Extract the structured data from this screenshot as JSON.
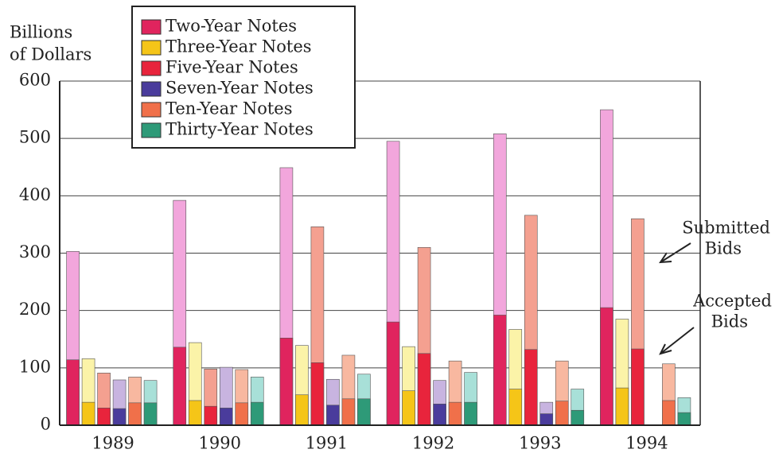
{
  "chart_data": {
    "type": "bar",
    "y_label": [
      "Billions",
      "of Dollars"
    ],
    "categories": [
      "1989",
      "1990",
      "1991",
      "1992",
      "1993",
      "1994"
    ],
    "series": [
      {
        "name": "Two-Year Notes",
        "color": "#e0245e",
        "light_color": "#f2a6dc",
        "values": [
          303,
          392,
          449,
          495,
          508,
          550
        ],
        "accepted": [
          114,
          136,
          152,
          180,
          192,
          205
        ]
      },
      {
        "name": "Three-Year Notes",
        "color": "#f5c518",
        "light_color": "#fbf3a8",
        "values": [
          116,
          144,
          139,
          137,
          167,
          185
        ],
        "accepted": [
          40,
          43,
          53,
          60,
          63,
          65
        ]
      },
      {
        "name": "Five-Year Notes",
        "color": "#e8243c",
        "light_color": "#f4a090",
        "values": [
          91,
          98,
          346,
          310,
          366,
          360
        ],
        "accepted": [
          30,
          33,
          109,
          125,
          132,
          133
        ]
      },
      {
        "name": "Seven-Year Notes",
        "color": "#4a3c9c",
        "light_color": "#c8b4e0",
        "values": [
          79,
          101,
          80,
          78,
          40,
          null
        ],
        "accepted": [
          29,
          30,
          35,
          37,
          20,
          null
        ]
      },
      {
        "name": "Ten-Year Notes",
        "color": "#f0704a",
        "light_color": "#f8b8a0",
        "values": [
          84,
          97,
          122,
          112,
          112,
          107
        ],
        "accepted": [
          39,
          39,
          46,
          40,
          42,
          43
        ]
      },
      {
        "name": "Thirty-Year Notes",
        "color": "#2e9a78",
        "light_color": "#a8e0d8",
        "values": [
          78,
          84,
          89,
          92,
          63,
          48
        ],
        "accepted": [
          39,
          40,
          46,
          40,
          26,
          22
        ]
      }
    ],
    "annotations": [
      [
        "Submitted",
        "Bids"
      ],
      [
        "Accepted",
        "Bids"
      ]
    ],
    "ylim": [
      0,
      600
    ],
    "yticks": [
      0,
      100,
      200,
      300,
      400,
      500,
      600
    ],
    "grid": true
  }
}
